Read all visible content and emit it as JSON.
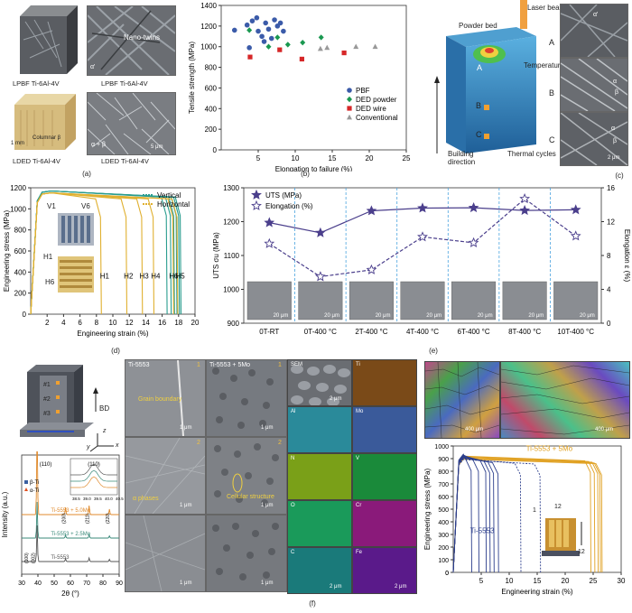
{
  "panels": {
    "a": {
      "caption": "(a)",
      "tl_label": "LPBF Ti-6Al-4V",
      "tr_label": "LPBF Ti-6Al-4V",
      "tr_overlay_nano": "Nano-twins",
      "tr_overlay_phase": "α'",
      "bl_label": "LDED Ti-6Al-4V",
      "bl_scale": "1 mm",
      "bl_feature": "Columnar β",
      "br_label": "LDED Ti-6Al-4V",
      "br_overlay_phase": "α + β",
      "br_scale": "5 μm"
    },
    "b": {
      "caption": "(b)"
    },
    "c": {
      "caption": "(c)",
      "laser": "Laser beam",
      "powder": "Powder bed",
      "build": "Building direction",
      "temperature": "Temperature",
      "thermal": "Thermal cycles",
      "points": [
        "A",
        "B",
        "C"
      ],
      "overlays": [
        "α'",
        "α",
        "β",
        "α",
        "β"
      ],
      "scale": "2 μm"
    },
    "d": {
      "caption": "(d)",
      "v_labels": [
        "V1",
        "V6"
      ],
      "h_labels": [
        "H1",
        "H6"
      ]
    },
    "e": {
      "caption": "(e)",
      "scale_each": "20 μm"
    },
    "f": {
      "caption": "(f)",
      "bd": "BD",
      "block_marks": [
        "#1",
        "#2",
        "#3"
      ],
      "axis_x": "x",
      "axis_y": "y",
      "axis_z": "z",
      "col1_title": "Ti-5553",
      "col2_title": "Ti-5553 + 5Mo",
      "grain_boundary": "Grain boundary",
      "alpha_phases": "α phases",
      "cellular": "Cellular structure",
      "scale_1um": "1 μm",
      "row_nums": [
        "1",
        "2"
      ],
      "eds": [
        "SEM",
        "Ti",
        "Al",
        "Mo",
        "N",
        "V",
        "O",
        "Cr",
        "C",
        "Fe"
      ],
      "eds_scale": "2 μm",
      "ebsd_scale": "400 μm",
      "build_numbers": [
        "1",
        "12",
        "12"
      ]
    }
  },
  "chart_data": [
    {
      "id": "b",
      "type": "scatter",
      "xlabel": "Elongation to failure (%)",
      "ylabel": "Tensile strength (MPa)",
      "xlim": [
        0,
        25
      ],
      "ylim": [
        0,
        1400
      ],
      "xticks": [
        5,
        10,
        15,
        20,
        25
      ],
      "yticks": [
        0,
        200,
        400,
        600,
        800,
        1000,
        1200,
        1400
      ],
      "legend_position": "right",
      "series": [
        {
          "name": "PBF",
          "color": "#3b5ba9",
          "marker": "circle",
          "x": [
            1.8,
            3.5,
            4.2,
            4.8,
            5.0,
            5.5,
            6.0,
            6.4,
            6.8,
            7.2,
            7.6,
            8.0,
            8.4,
            3.8,
            5.8
          ],
          "y": [
            1160,
            1210,
            1250,
            1280,
            1150,
            1100,
            1230,
            1170,
            1080,
            1260,
            1200,
            1230,
            1150,
            990,
            1050
          ]
        },
        {
          "name": "DED powder",
          "color": "#1a9850",
          "marker": "diamond",
          "x": [
            3.8,
            6.4,
            7.6,
            9.0,
            11.0,
            13.5
          ],
          "y": [
            1160,
            1000,
            1090,
            1020,
            1040,
            1090
          ]
        },
        {
          "name": "DED wire",
          "color": "#d62728",
          "marker": "square",
          "x": [
            3.9,
            7.9,
            10.9,
            16.6
          ],
          "y": [
            900,
            970,
            880,
            940
          ]
        },
        {
          "name": "Conventional",
          "color": "#999999",
          "marker": "triangle",
          "x": [
            13.4,
            14.3,
            18.2,
            20.8
          ],
          "y": [
            980,
            990,
            1000,
            1000
          ]
        }
      ]
    },
    {
      "id": "d",
      "type": "line",
      "xlabel": "Engineering strain (%)",
      "ylabel": "Engineering stress (MPa)",
      "xlim": [
        0,
        20
      ],
      "ylim": [
        0,
        1200
      ],
      "xticks": [
        2,
        4,
        6,
        8,
        10,
        12,
        14,
        16,
        18,
        20
      ],
      "yticks": [
        0,
        200,
        400,
        600,
        800,
        1000,
        1200
      ],
      "legend_position": "top-right",
      "series": [
        {
          "name": "Vertical",
          "color": "#2a9d8f",
          "peak": 1170,
          "fail_strains": [
            16.5,
            17.0,
            17.4,
            17.7,
            18.0,
            18.2
          ]
        },
        {
          "name": "Horizontal",
          "color": "#e0b030",
          "peak": 1160,
          "fail_strains": [
            8.5,
            11.6,
            13.5,
            14.9,
            17.3,
            17.8
          ]
        }
      ],
      "annotations": [
        "H1",
        "H2",
        "H3",
        "H4",
        "H6",
        "H5"
      ],
      "annotation_x": [
        9.0,
        11.9,
        13.8,
        15.2,
        17.4,
        18.2
      ]
    },
    {
      "id": "e",
      "type": "line",
      "categories": [
        "0T-RT",
        "0T-400 °C",
        "2T-400 °C",
        "4T-400 °C",
        "6T-400 °C",
        "8T-400 °C",
        "10T-400 °C"
      ],
      "ylabel_left": "UTS σu (MPa)",
      "ylabel_right": "Elongation ε (%)",
      "ylim_left": [
        900,
        1300
      ],
      "yticks_left": [
        900,
        1000,
        1100,
        1200,
        1300
      ],
      "ylim_right": [
        0,
        16
      ],
      "yticks_right": [
        0,
        4,
        8,
        12,
        16
      ],
      "legend_position": "top-left",
      "series": [
        {
          "name": "UTS (MPa)",
          "axis": "left",
          "color": "#4b3f8c",
          "values": [
            1197,
            1167,
            1232,
            1240,
            1241,
            1233,
            1235
          ]
        },
        {
          "name": "Elongation (%)",
          "axis": "right",
          "color": "#4b3f8c",
          "values": [
            9.4,
            5.5,
            6.3,
            10.2,
            9.5,
            14.7,
            10.3
          ]
        }
      ]
    },
    {
      "id": "f-xrd",
      "type": "line",
      "xlabel": "2θ (°)",
      "ylabel": "Intensity (a.u.)",
      "xlim": [
        30,
        90
      ],
      "xticks": [
        30,
        40,
        50,
        60,
        70,
        80,
        90
      ],
      "legend_position": "top-left",
      "legend": [
        "β-Ti",
        "α-Ti"
      ],
      "peaks": [
        "(110)",
        "(200)",
        "(211)",
        "(220)",
        "(100)",
        "(002)"
      ],
      "series": [
        {
          "name": "Ti-5553 + 5.0Mo",
          "color": "#e08a2c"
        },
        {
          "name": "Ti-5553 + 2.5Mo",
          "color": "#3a8a7a"
        },
        {
          "name": "Ti-5553",
          "color": "#555555"
        }
      ],
      "inset": {
        "label": "(110)",
        "xticks": [
          "38.5",
          "39.0",
          "39.5",
          "40.0",
          "40.5"
        ]
      }
    },
    {
      "id": "f-tensile",
      "type": "line",
      "xlabel": "Engineering strain (%)",
      "ylabel": "Engineering stress (MPa)",
      "xlim": [
        0,
        30
      ],
      "ylim": [
        0,
        1000
      ],
      "xticks": [
        5,
        10,
        15,
        20,
        25,
        30
      ],
      "yticks": [
        0,
        100,
        200,
        300,
        400,
        500,
        600,
        700,
        800,
        900,
        1000
      ],
      "series": [
        {
          "name": "Ti-5553 + 5Mo",
          "color": "#e0a020"
        },
        {
          "name": "Ti-5553",
          "color": "#2c3e8c"
        }
      ]
    }
  ]
}
